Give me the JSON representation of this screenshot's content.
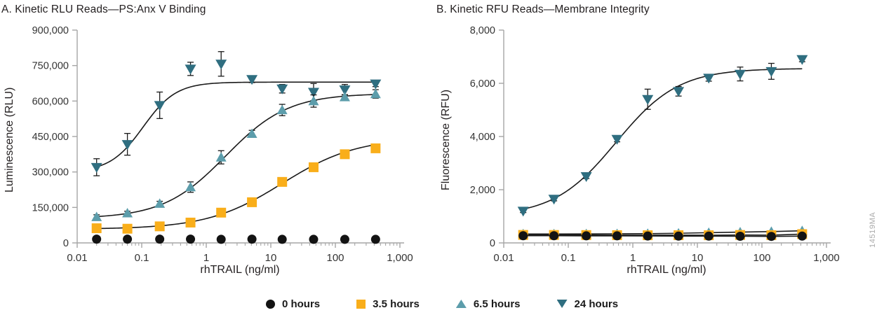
{
  "figure": {
    "watermark": "14519MA"
  },
  "legend": {
    "items": [
      {
        "label": "0 hours",
        "marker": "circle",
        "color": "#131313"
      },
      {
        "label": "3.5 hours",
        "marker": "square",
        "color": "#F9AE1A"
      },
      {
        "label": "6.5 hours",
        "marker": "triangle-up",
        "color": "#5C9DAB"
      },
      {
        "label": "24 hours",
        "marker": "triangle-down",
        "color": "#2F6E80"
      }
    ]
  },
  "chart_data": [
    {
      "panel_label": "A",
      "type": "scatter",
      "x_scale": "log",
      "title": "A. Kinetic RLU Reads—PS:Anx V Binding",
      "xlabel": "rhTRAIL (ng/ml)",
      "ylabel": "Luminescence (RLU)",
      "xlim": [
        0.01,
        1000
      ],
      "ylim": [
        0,
        900000
      ],
      "xticks": [
        {
          "v": 0.01,
          "label": "0.01"
        },
        {
          "v": 0.1,
          "label": "0.1"
        },
        {
          "v": 1,
          "label": "1"
        },
        {
          "v": 10,
          "label": "10"
        },
        {
          "v": 100,
          "label": "100"
        },
        {
          "v": 1000,
          "label": "1,000"
        }
      ],
      "yticks": [
        {
          "v": 0,
          "label": "0"
        },
        {
          "v": 150000,
          "label": "150,000"
        },
        {
          "v": 300000,
          "label": "300,000"
        },
        {
          "v": 450000,
          "label": "450,000"
        },
        {
          "v": 600000,
          "label": "600,000"
        },
        {
          "v": 750000,
          "label": "750,000"
        },
        {
          "v": 900000,
          "label": "900,000"
        }
      ],
      "x": [
        0.02,
        0.06,
        0.19,
        0.57,
        1.7,
        5.1,
        15,
        46,
        140,
        420
      ],
      "series": [
        {
          "name": "0 hours",
          "marker": "circle",
          "color": "#131313",
          "line": "none",
          "values": [
            16000,
            16000,
            16000,
            16000,
            15000,
            16000,
            15000,
            15000,
            15000,
            15000
          ],
          "err": [
            0,
            0,
            0,
            0,
            0,
            0,
            0,
            0,
            0,
            0
          ]
        },
        {
          "name": "3.5 hours",
          "marker": "square",
          "color": "#F9AE1A",
          "line": "fit",
          "fit": {
            "bottom": 58000,
            "top": 445000,
            "ec50": 15,
            "hill": 0.75
          },
          "values": [
            62000,
            60000,
            70000,
            86000,
            128000,
            172000,
            258000,
            320000,
            375000,
            400000
          ],
          "err": [
            6000,
            5000,
            5000,
            5000,
            9000,
            6000,
            8000,
            8000,
            6000,
            6000
          ]
        },
        {
          "name": "6.5 hours",
          "marker": "triangle-up",
          "color": "#5C9DAB",
          "line": "fit",
          "fit": {
            "bottom": 103000,
            "top": 632000,
            "ec50": 2.0,
            "hill": 0.9
          },
          "values": [
            110000,
            126000,
            166000,
            236000,
            362000,
            462000,
            562000,
            600000,
            617000,
            630000
          ],
          "err": [
            9000,
            8000,
            10000,
            22000,
            28000,
            14000,
            24000,
            26000,
            10000,
            18000
          ]
        },
        {
          "name": "24 hours",
          "marker": "triangle-down",
          "color": "#2F6E80",
          "line": "fit",
          "fit": {
            "bottom": 300000,
            "top": 680000,
            "ec50": 0.105,
            "hill": 1.7
          },
          "values": [
            320000,
            417000,
            582000,
            736000,
            757000,
            692000,
            652000,
            638000,
            648000,
            673000
          ],
          "err": [
            36000,
            46000,
            56000,
            28000,
            52000,
            14000,
            18000,
            36000,
            22000,
            12000
          ]
        }
      ]
    },
    {
      "panel_label": "B",
      "type": "scatter",
      "x_scale": "log",
      "title": "B. Kinetic RFU Reads—Membrane Integrity",
      "xlabel": "rhTRAIL (ng/ml)",
      "ylabel": "Fluorescence (RFU)",
      "xlim": [
        0.01,
        1000
      ],
      "ylim": [
        0,
        8000
      ],
      "xticks": [
        {
          "v": 0.01,
          "label": "0.01"
        },
        {
          "v": 0.1,
          "label": "0.1"
        },
        {
          "v": 1,
          "label": "1"
        },
        {
          "v": 10,
          "label": "10"
        },
        {
          "v": 100,
          "label": "100"
        },
        {
          "v": 1000,
          "label": "1,000"
        }
      ],
      "yticks": [
        {
          "v": 0,
          "label": "0"
        },
        {
          "v": 2000,
          "label": "2,000"
        },
        {
          "v": 4000,
          "label": "4,000"
        },
        {
          "v": 6000,
          "label": "6,000"
        },
        {
          "v": 8000,
          "label": "8,000"
        }
      ],
      "x": [
        0.02,
        0.06,
        0.19,
        0.57,
        1.7,
        5.1,
        15,
        46,
        140,
        420
      ],
      "series": [
        {
          "name": "0 hours",
          "marker": "circle",
          "color": "#131313",
          "line": "segments",
          "values": [
            270,
            270,
            265,
            265,
            260,
            255,
            255,
            250,
            245,
            255
          ],
          "err": [
            0,
            0,
            0,
            0,
            0,
            0,
            0,
            0,
            0,
            0
          ]
        },
        {
          "name": "3.5 hours",
          "marker": "square",
          "color": "#F9AE1A",
          "line": "segments",
          "values": [
            300,
            298,
            295,
            292,
            288,
            290,
            288,
            298,
            292,
            330
          ],
          "err": [
            0,
            0,
            0,
            0,
            0,
            0,
            0,
            0,
            0,
            0
          ]
        },
        {
          "name": "6.5 hours",
          "marker": "triangle-up",
          "color": "#5C9DAB",
          "line": "segments",
          "values": [
            335,
            335,
            338,
            342,
            348,
            362,
            385,
            405,
            425,
            455
          ],
          "err": [
            0,
            0,
            0,
            0,
            0,
            0,
            0,
            0,
            0,
            0
          ]
        },
        {
          "name": "24 hours",
          "marker": "triangle-down",
          "color": "#2F6E80",
          "line": "fit",
          "fit": {
            "bottom": 1000,
            "top": 6560,
            "ec50": 0.55,
            "hill": 0.9
          },
          "values": [
            1200,
            1650,
            2500,
            3900,
            5400,
            5700,
            6200,
            6350,
            6450,
            6900
          ],
          "err": [
            60,
            70,
            80,
            100,
            380,
            180,
            120,
            260,
            300,
            90
          ]
        }
      ]
    }
  ]
}
